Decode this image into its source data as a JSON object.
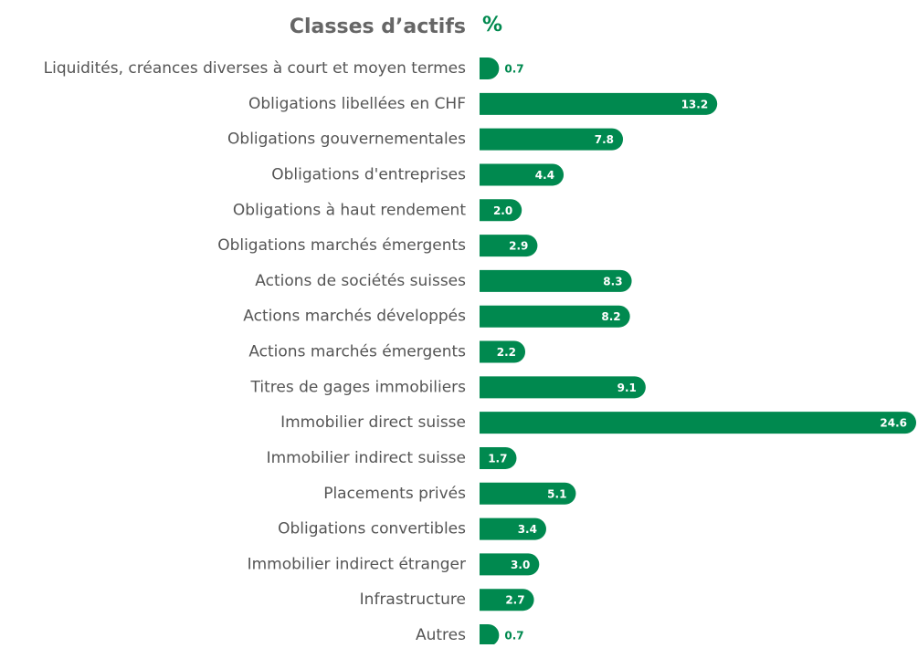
{
  "chart_data": {
    "type": "bar",
    "orientation": "horizontal",
    "title": "Classes d’actifs",
    "unit_header": "%",
    "categories": [
      "Liquidités, créances diverses à court et moyen termes",
      "Obligations libellées en CHF",
      "Obligations gouvernementales",
      "Obligations d'entreprises",
      "Obligations à haut rendement",
      "Obligations marchés émergents",
      "Actions de sociétés suisses",
      "Actions marchés développés",
      "Actions marchés émergents",
      "Titres de gages immobiliers",
      "Immobilier direct suisse",
      "Immobilier indirect suisse",
      "Placements privés",
      "Obligations convertibles",
      "Immobilier indirect étranger",
      "Infrastructure",
      "Autres"
    ],
    "values": [
      0.7,
      13.2,
      7.8,
      4.4,
      2.0,
      2.9,
      8.3,
      8.2,
      2.2,
      9.1,
      24.6,
      1.7,
      5.1,
      3.4,
      3.0,
      2.7,
      0.7
    ],
    "value_labels": [
      "0.7",
      "13.2",
      "7.8",
      "4.4",
      "2.0",
      "2.9",
      "8.3",
      "8.2",
      "2.2",
      "9.1",
      "24.6",
      "1.7",
      "5.1",
      "3.4",
      "3.0",
      "2.7",
      "0.7"
    ],
    "color": "#00894f"
  }
}
